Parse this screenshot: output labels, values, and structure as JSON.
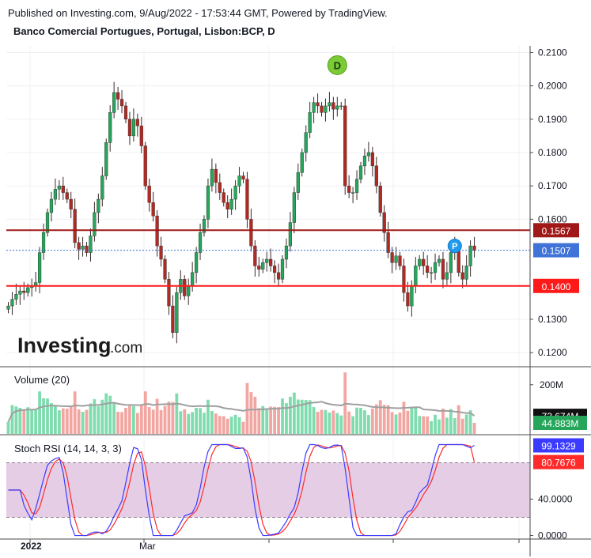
{
  "header": {
    "published": "Published on Investing.com, 9/Aug/2022 - 17:53:44 GMT, Powered by TradingView.",
    "instrument": "Banco Comercial Portugues, Portugal, Lisbon:BCP, D"
  },
  "logo": {
    "brand": "Investing",
    "suffix": ".com"
  },
  "colors": {
    "up": "#26a65b",
    "down": "#b02a24",
    "up_vol": "#7fdcae",
    "down_vol": "#f2a6a2",
    "resistance": "#a01818",
    "support": "#ff1a1a",
    "last_price": "#3f73d8",
    "stoch_k": "#3b3bff",
    "stoch_d": "#ff2a2a",
    "stoch_band": "#e6cde6",
    "volume_ma": "#a0a0a0",
    "marker_d": "#7acb36",
    "marker_p": "#1f9bf0"
  },
  "chart_data": [
    {
      "type": "candlestick",
      "title": "Banco Comercial Portugues, Portugal, Lisbon:BCP, D",
      "y_axis_ticks": [
        "0.2100",
        "0.2000",
        "0.1900",
        "0.1800",
        "0.1700",
        "0.1600",
        "0.1300",
        "0.1200"
      ],
      "ylim": [
        0.116,
        0.212
      ],
      "x_axis_labels": [
        "2022",
        "Mar"
      ],
      "lines": [
        {
          "name": "resistance",
          "value": 0.1567,
          "label": "0.1567"
        },
        {
          "name": "last",
          "value": 0.1507,
          "label": "0.1507"
        },
        {
          "name": "support",
          "value": 0.14,
          "label": "0.1400"
        }
      ],
      "markers": [
        {
          "letter": "D",
          "index": 84,
          "value": 0.2062
        },
        {
          "letter": "P",
          "index": 114,
          "value": 0.152
        }
      ],
      "close": [
        0.134,
        0.136,
        0.1375,
        0.1385,
        0.138,
        0.1395,
        0.14,
        0.141,
        0.15,
        0.156,
        0.162,
        0.166,
        0.169,
        0.17,
        0.168,
        0.166,
        0.163,
        0.153,
        0.151,
        0.152,
        0.15,
        0.155,
        0.162,
        0.166,
        0.173,
        0.183,
        0.192,
        0.198,
        0.196,
        0.194,
        0.19,
        0.185,
        0.19,
        0.188,
        0.182,
        0.17,
        0.165,
        0.161,
        0.152,
        0.148,
        0.142,
        0.134,
        0.126,
        0.138,
        0.142,
        0.137,
        0.14,
        0.144,
        0.15,
        0.156,
        0.16,
        0.17,
        0.175,
        0.171,
        0.168,
        0.165,
        0.163,
        0.166,
        0.17,
        0.173,
        0.172,
        0.16,
        0.152,
        0.146,
        0.145,
        0.147,
        0.148,
        0.146,
        0.144,
        0.142,
        0.148,
        0.152,
        0.159,
        0.168,
        0.174,
        0.18,
        0.186,
        0.192,
        0.195,
        0.194,
        0.192,
        0.194,
        0.195,
        0.193,
        0.194,
        0.194,
        0.17,
        0.168,
        0.168,
        0.172,
        0.176,
        0.179,
        0.18,
        0.176,
        0.17,
        0.162,
        0.156,
        0.15,
        0.147,
        0.149,
        0.146,
        0.138,
        0.134,
        0.14,
        0.146,
        0.148,
        0.146,
        0.144,
        0.144,
        0.147,
        0.148,
        0.142,
        0.144,
        0.15,
        0.152,
        0.144,
        0.142,
        0.146,
        0.152,
        0.1507
      ],
      "volume_axis_ticks": [
        "200M"
      ],
      "volume_labels": [
        {
          "name": "volume_ma",
          "label": "73.674M"
        },
        {
          "name": "volume",
          "label": "44.883M"
        }
      ],
      "volume_title": "Volume (20)",
      "volume_ylim": [
        0,
        270
      ],
      "stoch_title": "Stoch RSI (14, 14, 3, 3)",
      "stoch_axis_ticks": [
        "40.0000",
        "0.0000"
      ],
      "stoch_ylim": [
        -3,
        110
      ],
      "stoch_band": [
        20,
        80
      ],
      "stoch_labels": [
        {
          "name": "k",
          "label": "99.1329"
        },
        {
          "name": "d",
          "label": "80.7676"
        }
      ]
    }
  ]
}
